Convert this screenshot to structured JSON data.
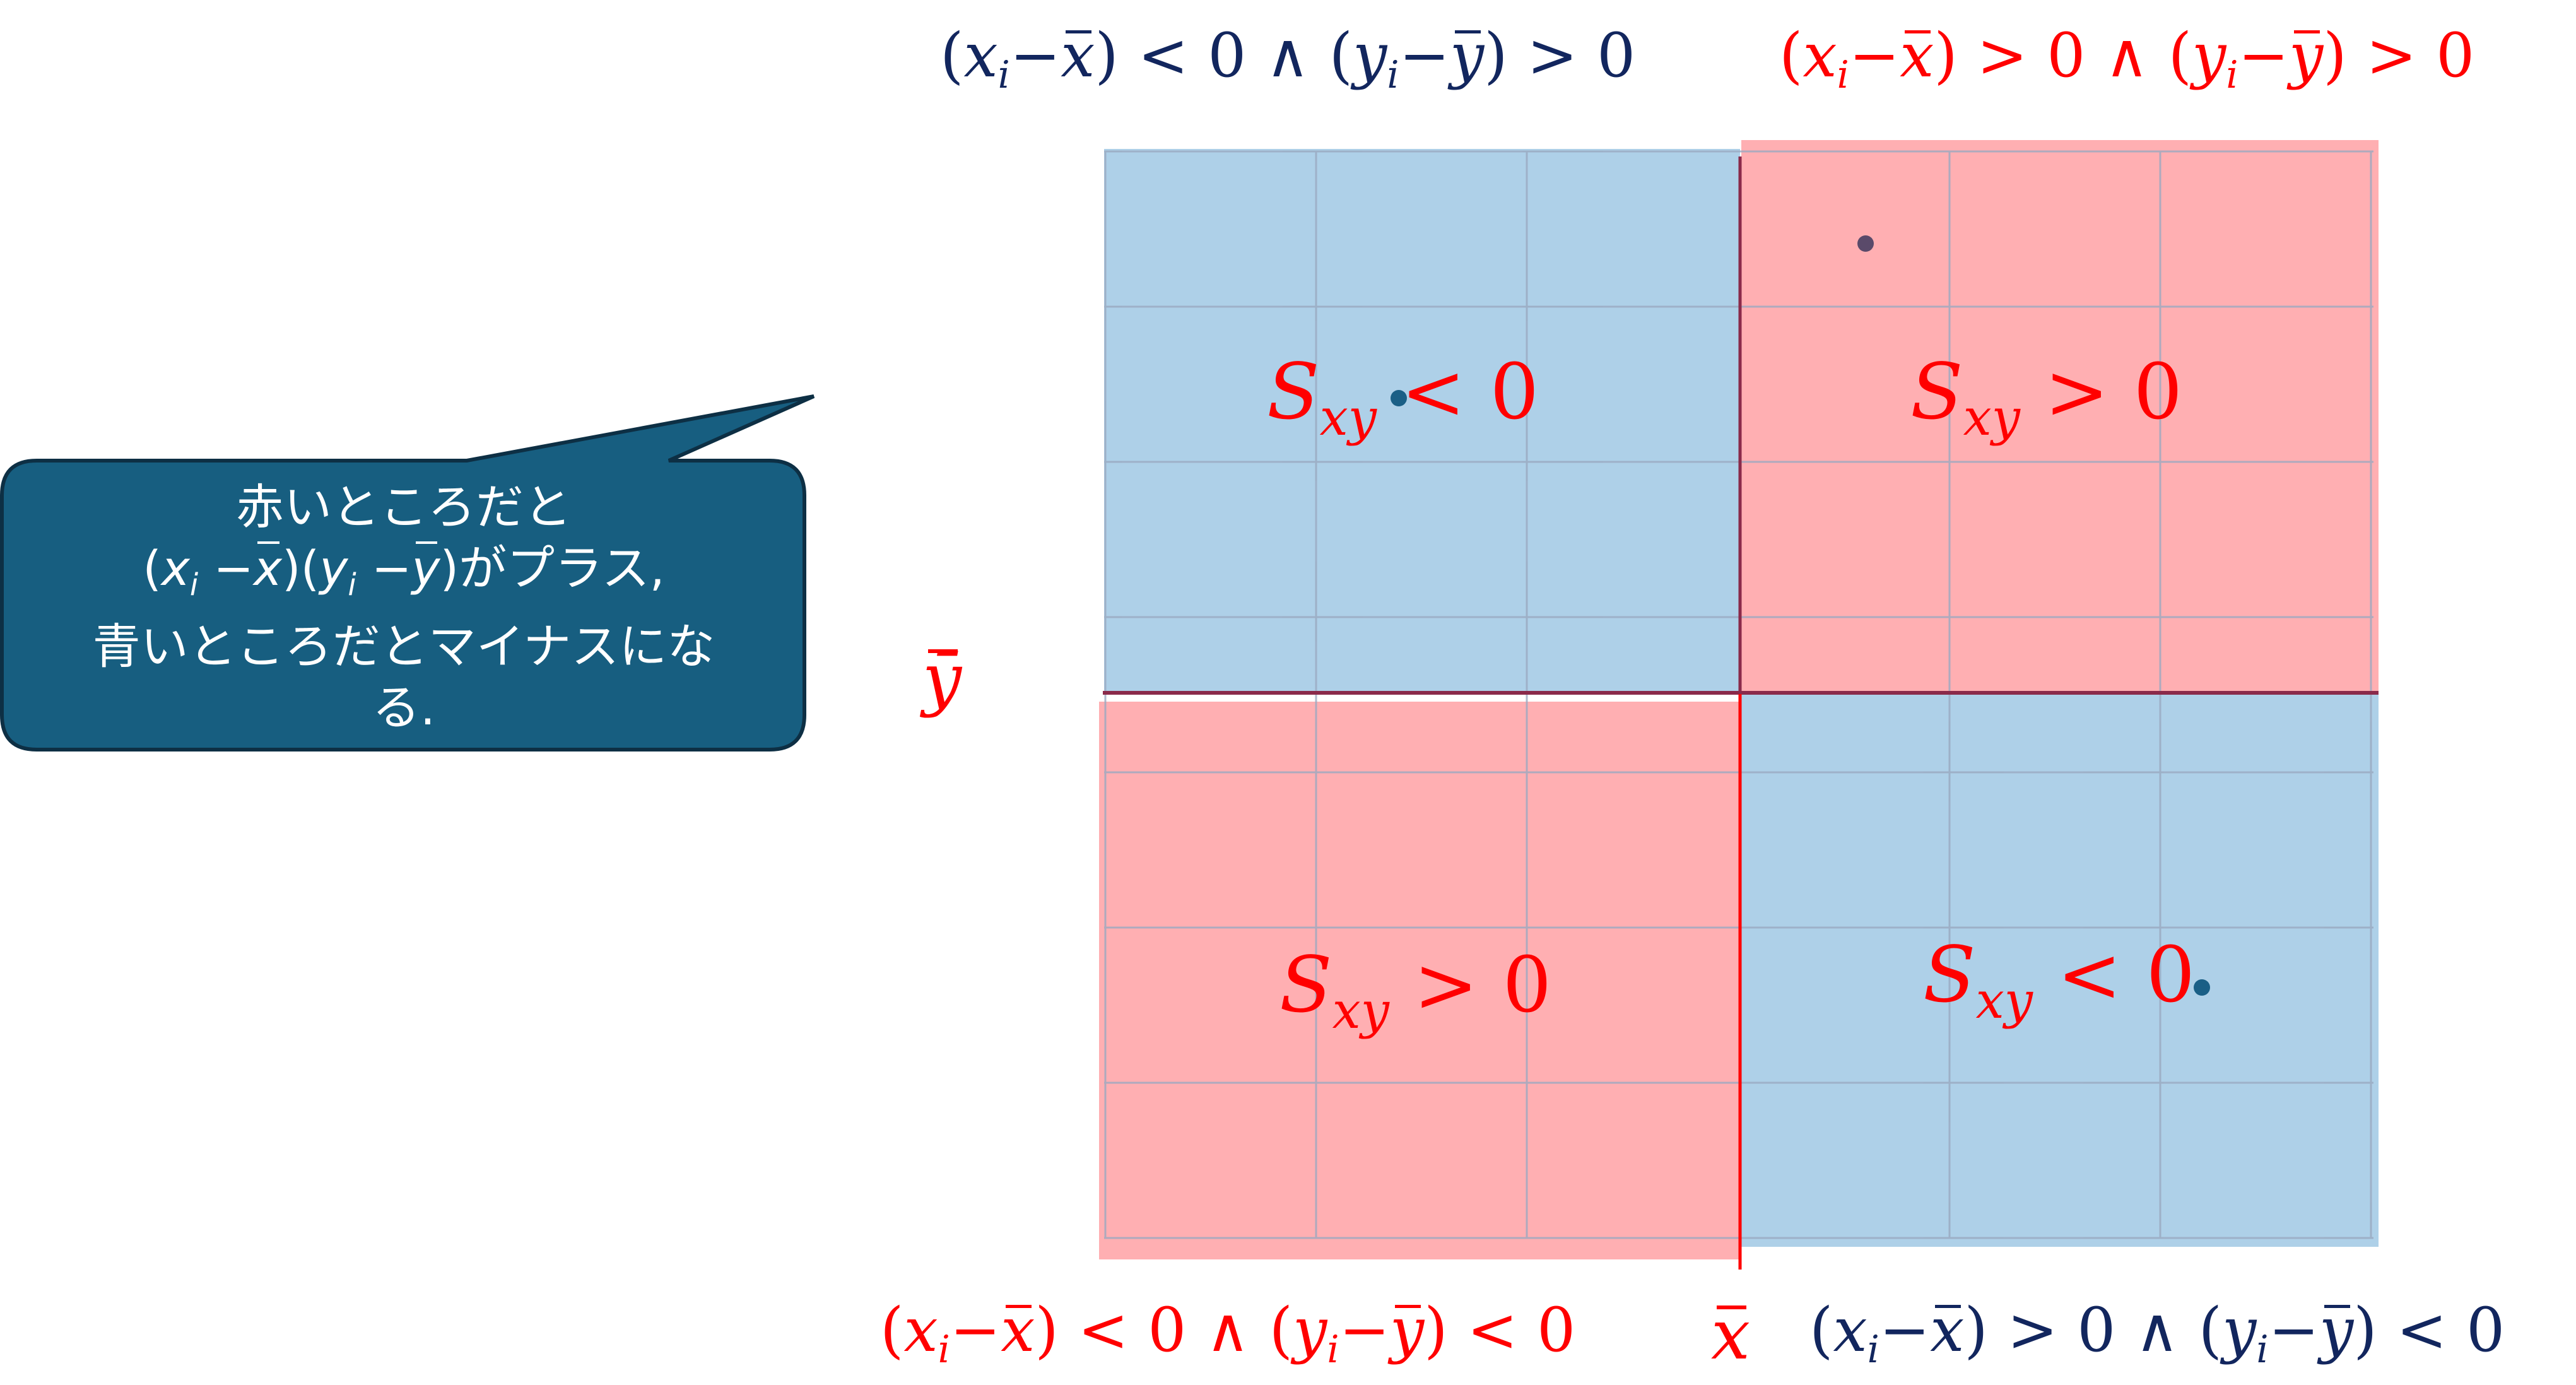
{
  "conditions": {
    "top_left": "(xᵢ−x̄) < 0 ∧ (yᵢ−ȳ) > 0",
    "top_right": "(xᵢ−x̄) > 0 ∧ (yᵢ−ȳ) > 0",
    "bottom_left": "(xᵢ−x̄) < 0 ∧ (yᵢ−ȳ) < 0",
    "bottom_right": "(xᵢ−x̄) > 0 ∧ (yᵢ−ȳ) < 0"
  },
  "axes": {
    "x_mean": "x̄",
    "y_mean": "ȳ"
  },
  "quadrants": {
    "top_left": "Sxy < 0",
    "top_right": "Sxy > 0",
    "bottom_left": "Sxy > 0",
    "bottom_right": "Sxy < 0"
  },
  "callout": {
    "lines": [
      "赤いところだと",
      "(xᵢ −x̄)(yᵢ −ȳ)がプラス,",
      "青いところだとマイナスにな",
      "る."
    ]
  },
  "colors": {
    "blue_region": "#aed0e8",
    "red_region": "#ffafb2",
    "callout_fill": "#175e80",
    "navy_text": "#12265e",
    "red_text": "#ff0000"
  }
}
